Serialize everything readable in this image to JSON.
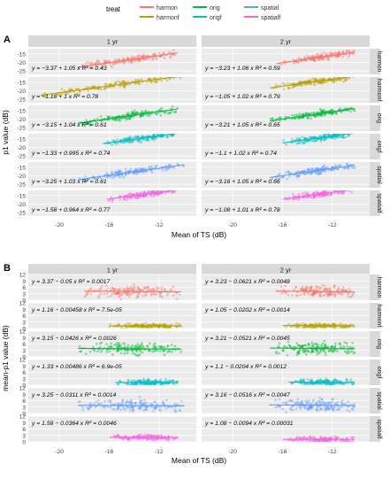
{
  "legend": {
    "title": "treat",
    "items": [
      {
        "label": "harmon",
        "color": "#F8766D"
      },
      {
        "label": "harmonf",
        "color": "#B79F00"
      },
      {
        "label": "orig",
        "color": "#00BA38"
      },
      {
        "label": "origf",
        "color": "#00BFC4"
      },
      {
        "label": "spatial",
        "color": "#619CFF"
      },
      {
        "label": "spatialf",
        "color": "#F564E3"
      }
    ]
  },
  "colors": {
    "harmon": "#F8766D",
    "harmonf": "#B79F00",
    "orig": "#00BA38",
    "origf": "#00BFC4",
    "spatial": "#619CFF",
    "spatialf": "#F564E3",
    "panel_bg": "#EBEBEB",
    "grid": "#FFFFFF",
    "strip_bg": "#D9D9D9"
  },
  "chart_data": [
    {
      "panel_label": "A",
      "type": "scatter",
      "xlabel": "Mean of TS (dB)",
      "ylabel": "p1 value (dB)",
      "columns": [
        "1 yr",
        "2 yr"
      ],
      "rows": [
        "harmon",
        "harmonf",
        "orig",
        "origf",
        "spatial",
        "spatialf"
      ],
      "x_ticks": [
        -20,
        -16,
        -12
      ],
      "xlim": [
        -22.5,
        -9
      ],
      "y_ticks": [
        -15,
        -20,
        -25
      ],
      "ylim": [
        -27,
        -12
      ],
      "cells": [
        {
          "row": "harmon",
          "col": "1 yr",
          "eq": "y = −3.37 + 1.05 x   R² = 0.43",
          "intercept": -3.37,
          "slope": 1.05,
          "x_range": [
            -18.5,
            -10.5
          ]
        },
        {
          "row": "harmon",
          "col": "2 yr",
          "eq": "y = −3.23 + 1.06 x   R² = 0.59",
          "intercept": -3.23,
          "slope": 1.06,
          "x_range": [
            -16.5,
            -10.2
          ]
        },
        {
          "row": "harmonf",
          "col": "1 yr",
          "eq": "y = −1.16 + 1 x   R² = 0.78",
          "intercept": -1.16,
          "slope": 1.0,
          "x_range": [
            -21.5,
            -10.2
          ]
        },
        {
          "row": "harmonf",
          "col": "2 yr",
          "eq": "y = −1.05 + 1.02 x   R² = 0.79",
          "intercept": -1.05,
          "slope": 1.02,
          "x_range": [
            -17.0,
            -10.2
          ]
        },
        {
          "row": "orig",
          "col": "1 yr",
          "eq": "y = −3.15 + 1.04 x   R² = 0.61",
          "intercept": -3.15,
          "slope": 1.04,
          "x_range": [
            -18.5,
            -10.5
          ]
        },
        {
          "row": "orig",
          "col": "2 yr",
          "eq": "y = −3.21 + 1.05 x   R² = 0.65",
          "intercept": -3.21,
          "slope": 1.05,
          "x_range": [
            -17.0,
            -10.2
          ]
        },
        {
          "row": "origf",
          "col": "1 yr",
          "eq": "y = −1.33 + 0.995 x   R² = 0.74",
          "intercept": -1.33,
          "slope": 0.995,
          "x_range": [
            -16.5,
            -10.5
          ]
        },
        {
          "row": "origf",
          "col": "2 yr",
          "eq": "y = −1.1 + 1.02 x   R² = 0.74",
          "intercept": -1.1,
          "slope": 1.02,
          "x_range": [
            -16.0,
            -10.2
          ]
        },
        {
          "row": "spatial",
          "col": "1 yr",
          "eq": "y = −3.25 + 1.03 x   R² = 0.61",
          "intercept": -3.25,
          "slope": 1.03,
          "x_range": [
            -18.5,
            -10.0
          ]
        },
        {
          "row": "spatial",
          "col": "2 yr",
          "eq": "y = −3.16 + 1.05 x   R² = 0.66",
          "intercept": -3.16,
          "slope": 1.05,
          "x_range": [
            -17.0,
            -10.2
          ]
        },
        {
          "row": "spatialf",
          "col": "1 yr",
          "eq": "y = −1.58 + 0.964 x   R² = 0.77",
          "intercept": -1.58,
          "slope": 0.964,
          "x_range": [
            -16.2,
            -10.5
          ]
        },
        {
          "row": "spatialf",
          "col": "2 yr",
          "eq": "y = −1.08 + 1.01 x   R² = 0.78",
          "intercept": -1.08,
          "slope": 1.01,
          "x_range": [
            -16.0,
            -10.2
          ]
        }
      ]
    },
    {
      "panel_label": "B",
      "type": "scatter",
      "xlabel": "Mean of TS (dB)",
      "ylabel": "mean-p1 value (dB)",
      "columns": [
        "1 yr",
        "2 yr"
      ],
      "rows": [
        "harmon",
        "harmonf",
        "orig",
        "origf",
        "spatial",
        "spatialf"
      ],
      "x_ticks": [
        -20,
        -16,
        -12
      ],
      "xlim": [
        -22.5,
        -9
      ],
      "y_ticks": [
        0,
        3,
        6,
        9,
        12
      ],
      "ylim": [
        0,
        12
      ],
      "cells": [
        {
          "row": "harmon",
          "col": "1 yr",
          "eq": "y = 3.37 − 0.05 x   R² = 0.0017",
          "intercept": 3.37,
          "slope": -0.05,
          "x_range": [
            -18.0,
            -10.2
          ],
          "y_spread": 2.2
        },
        {
          "row": "harmon",
          "col": "2 yr",
          "eq": "y = 3.23 − 0.0621 x   R² = 0.0048",
          "intercept": 3.23,
          "slope": -0.0621,
          "x_range": [
            -16.5,
            -10.2
          ],
          "y_spread": 2.0
        },
        {
          "row": "harmonf",
          "col": "1 yr",
          "eq": "y = 1.16 − 0.00458 x   R² = 7.5e-05",
          "intercept": 1.16,
          "slope": -0.00458,
          "x_range": [
            -16.0,
            -10.2
          ],
          "y_spread": 0.8
        },
        {
          "row": "harmonf",
          "col": "2 yr",
          "eq": "y = 1.05 − 0.0202 x   R² = 0.0014",
          "intercept": 1.05,
          "slope": -0.0202,
          "x_range": [
            -16.0,
            -10.2
          ],
          "y_spread": 0.8
        },
        {
          "row": "orig",
          "col": "1 yr",
          "eq": "y = 3.15 − 0.0426 x   R² = 0.0026",
          "intercept": 3.15,
          "slope": -0.0426,
          "x_range": [
            -18.5,
            -10.2
          ],
          "y_spread": 2.2
        },
        {
          "row": "orig",
          "col": "2 yr",
          "eq": "y = 3.21 − 0.0521 x   R² = 0.0045",
          "intercept": 3.21,
          "slope": -0.0521,
          "x_range": [
            -17.0,
            -10.2
          ],
          "y_spread": 2.2
        },
        {
          "row": "origf",
          "col": "1 yr",
          "eq": "y = 1.33 + 0.00486 x   R² = 6.9e-05",
          "intercept": 1.33,
          "slope": 0.00486,
          "x_range": [
            -15.5,
            -10.5
          ],
          "y_spread": 1.2
        },
        {
          "row": "origf",
          "col": "2 yr",
          "eq": "y = 1.1 − 0.0204 x   R² = 0.0012",
          "intercept": 1.1,
          "slope": -0.0204,
          "x_range": [
            -15.5,
            -10.2
          ],
          "y_spread": 1.2
        },
        {
          "row": "spatial",
          "col": "1 yr",
          "eq": "y = 3.25 − 0.0311 x   R² = 0.0014",
          "intercept": 3.25,
          "slope": -0.0311,
          "x_range": [
            -18.5,
            -10.0
          ],
          "y_spread": 2.2
        },
        {
          "row": "spatial",
          "col": "2 yr",
          "eq": "y = 3.16 − 0.0516 x   R² = 0.0047",
          "intercept": 3.16,
          "slope": -0.0516,
          "x_range": [
            -17.0,
            -10.2
          ],
          "y_spread": 2.2
        },
        {
          "row": "spatialf",
          "col": "1 yr",
          "eq": "y = 1.58 − 0.0364 x   R² = 0.0046",
          "intercept": 1.58,
          "slope": -0.0364,
          "x_range": [
            -16.0,
            -10.5
          ],
          "y_spread": 1.0
        },
        {
          "row": "spatialf",
          "col": "2 yr",
          "eq": "y = 1.08 − 0.0094 x   R² = 0.00031",
          "intercept": 1.08,
          "slope": -0.0094,
          "x_range": [
            -16.0,
            -10.2
          ],
          "y_spread": 1.0
        }
      ]
    }
  ]
}
